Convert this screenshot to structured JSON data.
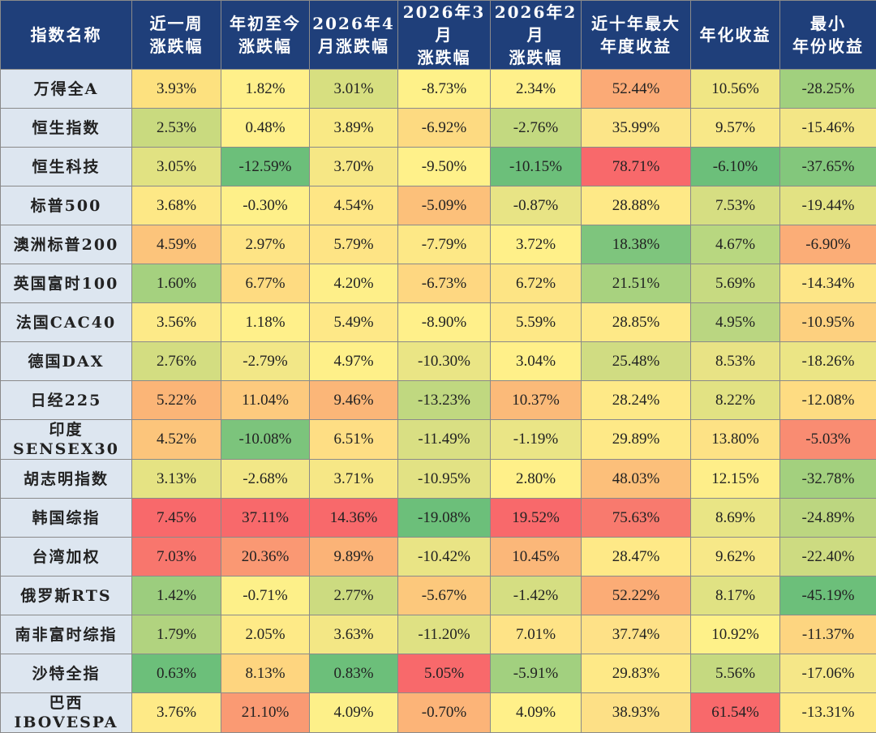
{
  "chart_data": {
    "type": "table",
    "columns": [
      "指数名称",
      "近一周\n涨跌幅",
      "年初至今\n涨跌幅",
      "2026年4\n月涨跌幅",
      "2026年3月\n涨跌幅",
      "2026年2月\n涨跌幅",
      "近十年最大\n年度收益",
      "年化收益",
      "最小\n年份收益"
    ],
    "rows": [
      {
        "name": "万得全A",
        "values": [
          "3.93%",
          "1.82%",
          "3.01%",
          "-8.73%",
          "2.34%",
          "52.44%",
          "10.56%",
          "-28.25%"
        ],
        "colors": [
          "#fde17f",
          "#fff08a",
          "#d7df80",
          "#fef189",
          "#fff08a",
          "#fbaa76",
          "#f0e684",
          "#a1d07e"
        ]
      },
      {
        "name": "恒生指数",
        "values": [
          "2.53%",
          "0.48%",
          "3.89%",
          "-6.92%",
          "-2.76%",
          "35.99%",
          "9.57%",
          "-15.46%"
        ],
        "colors": [
          "#c9da7f",
          "#fff08a",
          "#f9e985",
          "#fdda81",
          "#c3d980",
          "#fce588",
          "#f8e888",
          "#f3e686"
        ]
      },
      {
        "name": "恒生科技",
        "values": [
          "3.05%",
          "-12.59%",
          "3.70%",
          "-9.50%",
          "-10.15%",
          "78.71%",
          "-6.10%",
          "-37.65%"
        ],
        "colors": [
          "#e1e282",
          "#6cbf7a",
          "#f6e785",
          "#fff18a",
          "#6cbf7a",
          "#f8696b",
          "#6cbf7a",
          "#83c77c"
        ]
      },
      {
        "name": "标普500",
        "values": [
          "3.68%",
          "-0.30%",
          "4.54%",
          "-5.09%",
          "-0.87%",
          "28.88%",
          "7.53%",
          "-19.44%"
        ],
        "colors": [
          "#fde886",
          "#fef089",
          "#fee685",
          "#fcc07a",
          "#e8e485",
          "#fee987",
          "#d6de82",
          "#e2e283"
        ]
      },
      {
        "name": "澳洲标普200",
        "values": [
          "4.59%",
          "2.97%",
          "5.79%",
          "-7.79%",
          "3.72%",
          "18.38%",
          "4.67%",
          "-6.90%"
        ],
        "colors": [
          "#fcc47b",
          "#fee485",
          "#fee485",
          "#fde886",
          "#fff089",
          "#7ec57d",
          "#b8d780",
          "#fbad77"
        ]
      },
      {
        "name": "英国富时100",
        "values": [
          "1.60%",
          "6.77%",
          "4.20%",
          "-6.73%",
          "6.72%",
          "21.51%",
          "5.69%",
          "-14.34%"
        ],
        "colors": [
          "#a5d17f",
          "#fedb81",
          "#feef89",
          "#fed781",
          "#fde484",
          "#a8d27f",
          "#c7da81",
          "#fde687"
        ]
      },
      {
        "name": "法国CAC40",
        "values": [
          "3.56%",
          "1.18%",
          "5.49%",
          "-8.90%",
          "5.59%",
          "28.85%",
          "4.95%",
          "-10.95%"
        ],
        "colors": [
          "#fdea88",
          "#fff08a",
          "#fee887",
          "#fff08a",
          "#fee886",
          "#fee987",
          "#bad681",
          "#fdd07f"
        ]
      },
      {
        "name": "德国DAX",
        "values": [
          "2.76%",
          "-2.79%",
          "4.97%",
          "-10.30%",
          "3.04%",
          "25.48%",
          "8.53%",
          "-18.26%"
        ],
        "colors": [
          "#d3dd81",
          "#f2e787",
          "#fef089",
          "#eae585",
          "#fff089",
          "#d0dc82",
          "#e8e385",
          "#ebe585"
        ]
      },
      {
        "name": "日经225",
        "values": [
          "5.22%",
          "11.04%",
          "9.46%",
          "-13.23%",
          "10.37%",
          "28.24%",
          "8.22%",
          "-12.08%"
        ],
        "colors": [
          "#fbb577",
          "#fdca7e",
          "#fbb678",
          "#c0d880",
          "#fbba79",
          "#fee987",
          "#e2e283",
          "#fedc82"
        ]
      },
      {
        "name": "印度\nSENSEX30",
        "values": [
          "4.52%",
          "-10.08%",
          "6.51%",
          "-11.49%",
          "-1.19%",
          "29.89%",
          "13.80%",
          "-5.03%"
        ],
        "colors": [
          "#fcc57b",
          "#7cc47c",
          "#fede84",
          "#d9df83",
          "#eae586",
          "#fee987",
          "#fde285",
          "#f98c72"
        ]
      },
      {
        "name": "胡志明指数",
        "values": [
          "3.13%",
          "-2.68%",
          "3.71%",
          "-10.95%",
          "2.80%",
          "48.03%",
          "12.15%",
          "-32.78%"
        ],
        "colors": [
          "#e5e383",
          "#f2e787",
          "#f6e786",
          "#e2e284",
          "#fff089",
          "#fcbf7a",
          "#feee89",
          "#a3d07e"
        ]
      },
      {
        "name": "韩国综指",
        "values": [
          "7.45%",
          "37.11%",
          "14.36%",
          "-19.08%",
          "19.52%",
          "75.63%",
          "8.69%",
          "-24.89%"
        ],
        "colors": [
          "#f8696b",
          "#f8696b",
          "#f8696b",
          "#6cbf7a",
          "#f8696b",
          "#f87a6e",
          "#e9e585",
          "#bcd680"
        ]
      },
      {
        "name": "台湾加权",
        "values": [
          "7.03%",
          "20.36%",
          "9.89%",
          "-10.42%",
          "10.45%",
          "28.47%",
          "9.62%",
          "-22.40%"
        ],
        "colors": [
          "#f8766d",
          "#fa9873",
          "#fbb377",
          "#e9e485",
          "#fbb779",
          "#fee987",
          "#f7e888",
          "#cddb81"
        ]
      },
      {
        "name": "俄罗斯RTS",
        "values": [
          "1.42%",
          "-0.71%",
          "2.77%",
          "-5.67%",
          "-1.42%",
          "52.22%",
          "8.17%",
          "-45.19%"
        ],
        "colors": [
          "#9ccd7e",
          "#fdf089",
          "#ccdb80",
          "#fcc87c",
          "#d5de82",
          "#fbac76",
          "#e0e283",
          "#6cbf7a"
        ]
      },
      {
        "name": "南非富时综指",
        "values": [
          "1.79%",
          "2.05%",
          "3.63%",
          "-11.20%",
          "7.01%",
          "37.74%",
          "10.92%",
          "-11.37%"
        ],
        "colors": [
          "#b1d37f",
          "#feea87",
          "#f3e785",
          "#dfe183",
          "#fee386",
          "#fee187",
          "#fef189",
          "#fdd580"
        ]
      },
      {
        "name": "沙特全指",
        "values": [
          "0.63%",
          "8.13%",
          "0.83%",
          "5.05%",
          "-5.91%",
          "29.83%",
          "5.56%",
          "-17.06%"
        ],
        "colors": [
          "#6cbf7a",
          "#fed57f",
          "#6cbf7a",
          "#f8696b",
          "#a2d07f",
          "#fee987",
          "#c5d980",
          "#f5e788"
        ]
      },
      {
        "name": "巴西\nIBOVESPA",
        "values": [
          "3.76%",
          "21.10%",
          "4.09%",
          "-0.70%",
          "4.09%",
          "38.93%",
          "61.54%",
          "-13.31%"
        ],
        "colors": [
          "#feea87",
          "#fa9a73",
          "#fdf089",
          "#fcb478",
          "#fff089",
          "#fde086",
          "#f8696b",
          "#fee987"
        ]
      }
    ],
    "colors": {
      "header_bg": "#1f3f7a",
      "header_text": "#ffffff",
      "name_bg": "#dde6f0"
    }
  }
}
